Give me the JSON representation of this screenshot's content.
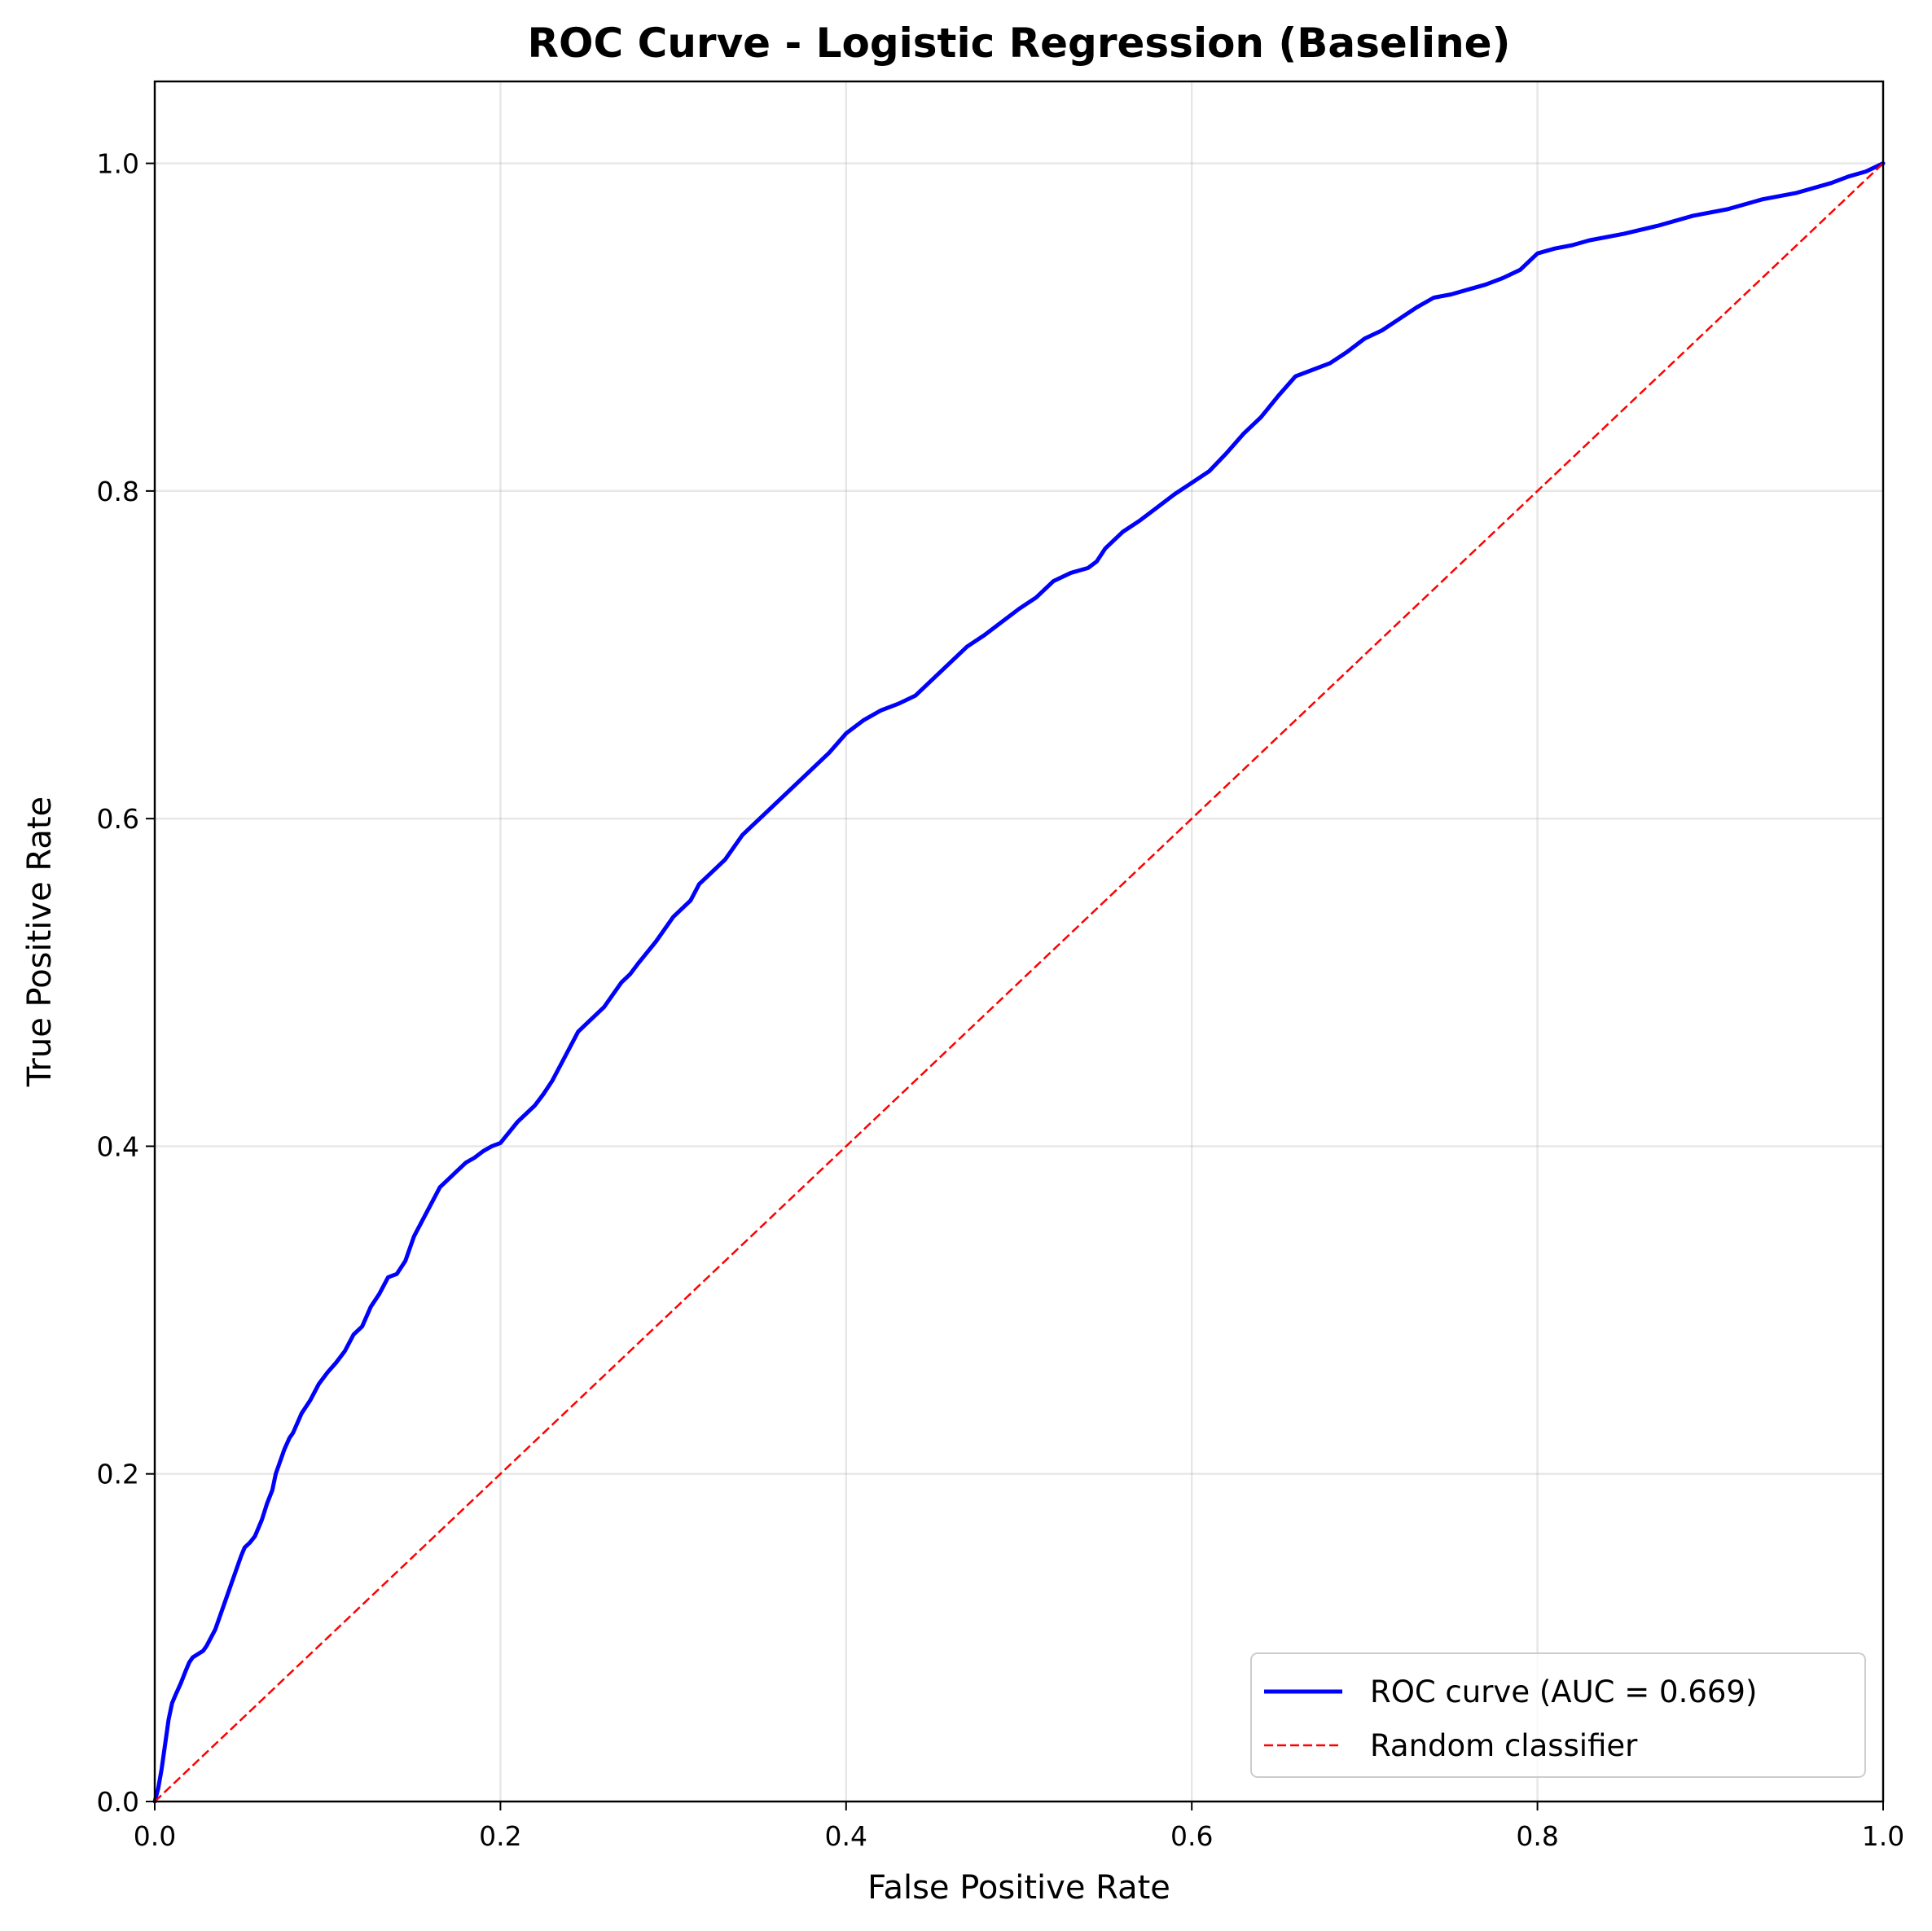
{
  "chart_data": {
    "type": "line",
    "title": "ROC Curve - Logistic Regression (Baseline)",
    "xlabel": "False Positive Rate",
    "ylabel": "True Positive Rate",
    "xlim": [
      0.0,
      1.0
    ],
    "ylim": [
      0.0,
      1.05
    ],
    "grid": true,
    "legend_position": "lower-right",
    "x_ticks": [
      "0.0",
      "0.2",
      "0.4",
      "0.6",
      "0.8",
      "1.0"
    ],
    "y_ticks": [
      "0.0",
      "0.2",
      "0.4",
      "0.6",
      "0.8",
      "1.0"
    ],
    "series": [
      {
        "name": "ROC curve (AUC = 0.669)",
        "color": "#0000ff",
        "line_style": "solid",
        "x": [
          0.0,
          0.002,
          0.004,
          0.006,
          0.008,
          0.01,
          0.012,
          0.015,
          0.018,
          0.02,
          0.022,
          0.025,
          0.028,
          0.03,
          0.035,
          0.04,
          0.045,
          0.05,
          0.052,
          0.055,
          0.058,
          0.062,
          0.065,
          0.068,
          0.07,
          0.075,
          0.078,
          0.08,
          0.085,
          0.09,
          0.095,
          0.1,
          0.105,
          0.11,
          0.115,
          0.12,
          0.125,
          0.13,
          0.135,
          0.14,
          0.145,
          0.15,
          0.155,
          0.16,
          0.165,
          0.17,
          0.175,
          0.18,
          0.185,
          0.19,
          0.195,
          0.2,
          0.21,
          0.22,
          0.225,
          0.23,
          0.235,
          0.24,
          0.245,
          0.25,
          0.26,
          0.27,
          0.275,
          0.28,
          0.29,
          0.3,
          0.31,
          0.315,
          0.32,
          0.33,
          0.34,
          0.35,
          0.36,
          0.37,
          0.38,
          0.39,
          0.4,
          0.41,
          0.42,
          0.43,
          0.44,
          0.45,
          0.46,
          0.47,
          0.48,
          0.49,
          0.5,
          0.51,
          0.52,
          0.53,
          0.54,
          0.545,
          0.55,
          0.56,
          0.57,
          0.58,
          0.59,
          0.6,
          0.61,
          0.62,
          0.63,
          0.64,
          0.65,
          0.66,
          0.67,
          0.68,
          0.69,
          0.7,
          0.71,
          0.72,
          0.73,
          0.74,
          0.75,
          0.76,
          0.77,
          0.78,
          0.79,
          0.8,
          0.81,
          0.82,
          0.83,
          0.85,
          0.87,
          0.89,
          0.91,
          0.93,
          0.95,
          0.97,
          0.98,
          0.99,
          1.0
        ],
        "y": [
          0.0,
          0.008,
          0.02,
          0.035,
          0.05,
          0.06,
          0.065,
          0.072,
          0.08,
          0.085,
          0.088,
          0.09,
          0.092,
          0.095,
          0.105,
          0.12,
          0.135,
          0.15,
          0.155,
          0.158,
          0.162,
          0.172,
          0.182,
          0.19,
          0.2,
          0.215,
          0.222,
          0.225,
          0.237,
          0.245,
          0.255,
          0.262,
          0.268,
          0.275,
          0.285,
          0.29,
          0.302,
          0.31,
          0.32,
          0.322,
          0.33,
          0.345,
          0.355,
          0.365,
          0.375,
          0.38,
          0.385,
          0.39,
          0.393,
          0.397,
          0.4,
          0.402,
          0.415,
          0.425,
          0.432,
          0.44,
          0.45,
          0.46,
          0.47,
          0.475,
          0.485,
          0.5,
          0.505,
          0.512,
          0.525,
          0.54,
          0.55,
          0.56,
          0.565,
          0.575,
          0.59,
          0.6,
          0.61,
          0.62,
          0.63,
          0.64,
          0.652,
          0.66,
          0.666,
          0.67,
          0.675,
          0.685,
          0.695,
          0.705,
          0.712,
          0.72,
          0.728,
          0.735,
          0.745,
          0.75,
          0.753,
          0.757,
          0.765,
          0.775,
          0.782,
          0.79,
          0.798,
          0.805,
          0.812,
          0.823,
          0.835,
          0.845,
          0.858,
          0.87,
          0.874,
          0.878,
          0.885,
          0.893,
          0.898,
          0.905,
          0.912,
          0.918,
          0.92,
          0.923,
          0.926,
          0.93,
          0.935,
          0.945,
          0.948,
          0.95,
          0.953,
          0.957,
          0.962,
          0.968,
          0.972,
          0.978,
          0.982,
          0.988,
          0.992,
          0.995,
          1.0
        ]
      },
      {
        "name": "Random classifier",
        "color": "#ff0000",
        "line_style": "dashed",
        "x": [
          0.0,
          1.0
        ],
        "y": [
          0.0,
          1.0
        ]
      }
    ],
    "legend": [
      "ROC curve (AUC = 0.669)",
      "Random classifier"
    ]
  }
}
